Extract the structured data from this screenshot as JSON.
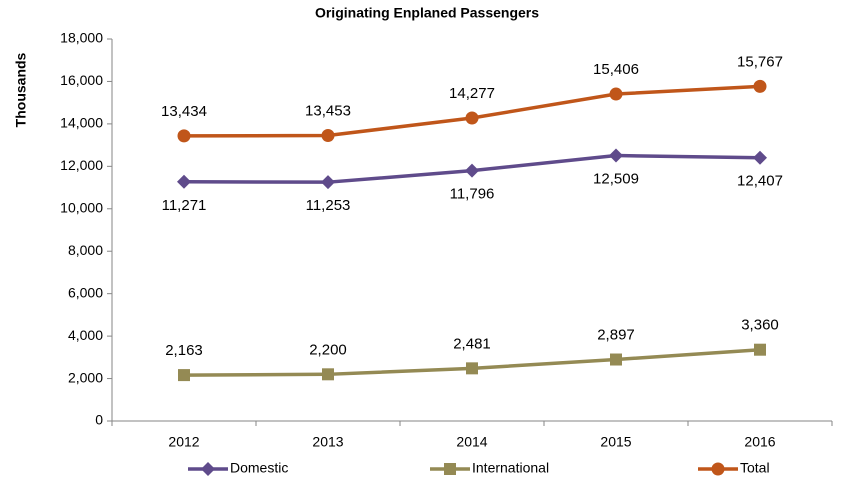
{
  "chart_data": {
    "type": "line",
    "title": "Originating Enplaned Passengers",
    "y_label": "Thousands",
    "categories": [
      "2012",
      "2013",
      "2014",
      "2015",
      "2016"
    ],
    "ylim": [
      0,
      18000
    ],
    "yticks": [
      {
        "value": 0,
        "label": "0"
      },
      {
        "value": 2000,
        "label": "2,000"
      },
      {
        "value": 4000,
        "label": "4,000"
      },
      {
        "value": 6000,
        "label": "6,000"
      },
      {
        "value": 8000,
        "label": "8,000"
      },
      {
        "value": 10000,
        "label": "10,000"
      },
      {
        "value": 12000,
        "label": "12,000"
      },
      {
        "value": 14000,
        "label": "14,000"
      },
      {
        "value": 16000,
        "label": "16,000"
      },
      {
        "value": 18000,
        "label": "18,000"
      }
    ],
    "grid": false,
    "legend": "bottom",
    "series": [
      {
        "name": "Domestic",
        "color": "#5f4b8b",
        "marker": "diamond",
        "label_position": "below",
        "values": [
          11271,
          11253,
          11796,
          12509,
          12407
        ],
        "value_labels": [
          "11,271",
          "11,253",
          "11,796",
          "12,509",
          "12,407"
        ]
      },
      {
        "name": "International",
        "color": "#948a54",
        "marker": "square",
        "label_position": "above",
        "values": [
          2163,
          2200,
          2481,
          2897,
          3360
        ],
        "value_labels": [
          "2,163",
          "2,200",
          "2,481",
          "2,897",
          "3,360"
        ]
      },
      {
        "name": "Total",
        "color": "#c0561a",
        "marker": "circle",
        "label_position": "above",
        "values": [
          13434,
          13453,
          14277,
          15406,
          15767
        ],
        "value_labels": [
          "13,434",
          "13,453",
          "14,277",
          "15,406",
          "15,767"
        ]
      }
    ]
  }
}
